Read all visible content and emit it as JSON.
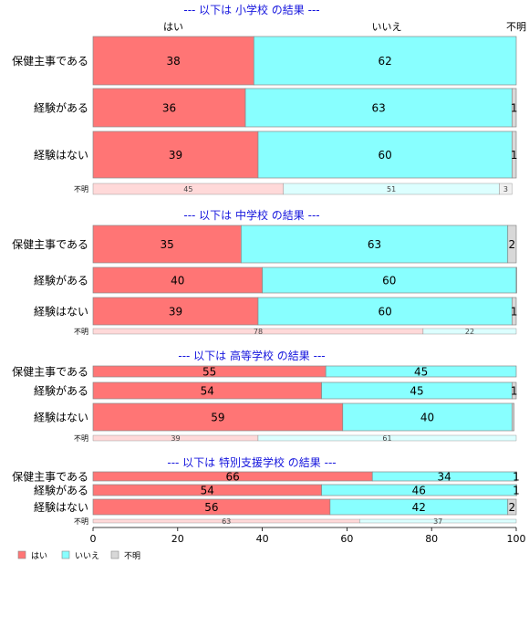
{
  "chart_data": {
    "type": "bar",
    "orientation": "horizontal",
    "stacked": true,
    "xlim": [
      0,
      100
    ],
    "x_ticks": [
      "0",
      "20",
      "40",
      "60",
      "80",
      "100"
    ],
    "top_column_labels": [
      "はい",
      "いいえ",
      "不明"
    ],
    "colors": {
      "はい": "#ff7575",
      "いいえ": "#88ffff",
      "不明": "#d8d8d8",
      "はい_light": "#ffd9d9",
      "いいえ_light": "#dcffff",
      "不明_light": "#f0f0f0",
      "panel_title": "#1515dd",
      "border": "#888888"
    },
    "legend": {
      "placement": "bottom-left",
      "entries": [
        "はい",
        "いいえ",
        "不明"
      ]
    },
    "panels": [
      {
        "title": "--- 以下は 小学校 の結果 ---",
        "rows": [
          {
            "label": "保健主事である",
            "values": [
              38,
              62,
              0
            ],
            "value_labels": [
              "38",
              "62",
              ""
            ]
          },
          {
            "label": "経験がある",
            "values": [
              36,
              63,
              1
            ],
            "value_labels": [
              "36",
              "63",
              "1"
            ]
          },
          {
            "label": "経験はない",
            "values": [
              39,
              60,
              1
            ],
            "value_labels": [
              "39",
              "60",
              "1"
            ]
          }
        ],
        "unknown_row": {
          "label": "不明",
          "values": [
            45,
            51,
            3
          ],
          "value_labels": [
            "45",
            "51",
            "3"
          ]
        }
      },
      {
        "title": "--- 以下は 中学校 の結果 ---",
        "rows": [
          {
            "label": "保健主事である",
            "values": [
              35,
              63,
              2
            ],
            "value_labels": [
              "35",
              "63",
              "2"
            ]
          },
          {
            "label": "経験がある",
            "values": [
              40,
              60,
              0.5
            ],
            "value_labels": [
              "40",
              "60",
              ""
            ]
          },
          {
            "label": "経験はない",
            "values": [
              39,
              60,
              1
            ],
            "value_labels": [
              "39",
              "60",
              "1"
            ]
          }
        ],
        "unknown_row": {
          "label": "不明",
          "values": [
            78,
            22,
            0
          ],
          "value_labels": [
            "78",
            "22",
            ""
          ]
        }
      },
      {
        "title": "--- 以下は 高等学校 の結果 ---",
        "rows": [
          {
            "label": "保健主事である",
            "values": [
              55,
              45,
              0
            ],
            "value_labels": [
              "55",
              "45",
              ""
            ]
          },
          {
            "label": "経験がある",
            "values": [
              54,
              45,
              1
            ],
            "value_labels": [
              "54",
              "45",
              "1"
            ]
          },
          {
            "label": "経験はない",
            "values": [
              59,
              40,
              0.5
            ],
            "value_labels": [
              "59",
              "40",
              ""
            ]
          }
        ],
        "unknown_row": {
          "label": "不明",
          "values": [
            39,
            61,
            0
          ],
          "value_labels": [
            "39",
            "61",
            ""
          ]
        }
      },
      {
        "title": "--- 以下は 特別支援学校 の結果 ---",
        "rows": [
          {
            "label": "保健主事である",
            "values": [
              66,
              34,
              1
            ],
            "value_labels": [
              "66",
              "34",
              "1"
            ]
          },
          {
            "label": "経験がある",
            "values": [
              54,
              46,
              1
            ],
            "value_labels": [
              "54",
              "46",
              "1"
            ]
          },
          {
            "label": "経験はない",
            "values": [
              56,
              42,
              2
            ],
            "value_labels": [
              "56",
              "42",
              "2"
            ]
          }
        ],
        "unknown_row": {
          "label": "不明",
          "values": [
            63,
            37,
            0
          ],
          "value_labels": [
            "63",
            "37",
            ""
          ]
        }
      }
    ]
  }
}
